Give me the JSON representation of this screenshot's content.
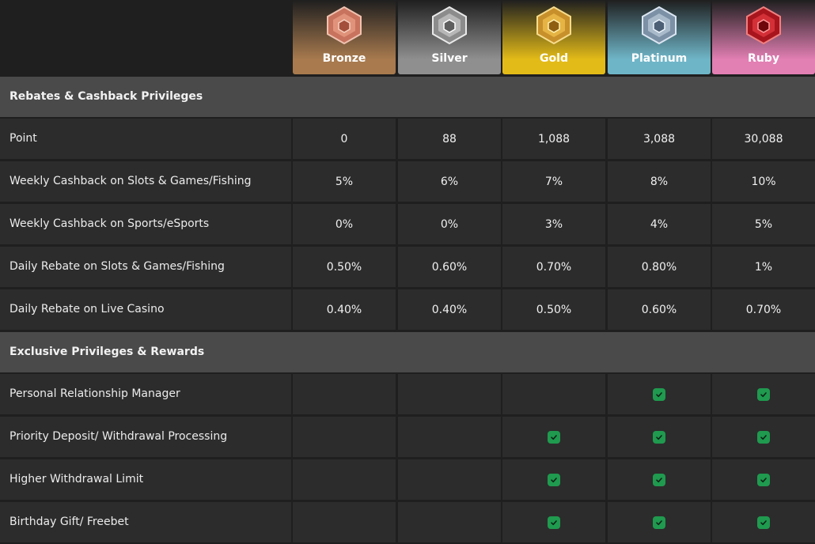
{
  "colors": {
    "background": "#1f1f1f",
    "cell": "#2c2c2c",
    "section": "#4a4a4a",
    "check": "#1f9a4f"
  },
  "tiers": [
    {
      "name": "Bronze",
      "color": "#a87a4e",
      "badge": "bronze-hexagon-icon"
    },
    {
      "name": "Silver",
      "color": "#8f8f8f",
      "badge": "silver-hexagon-icon"
    },
    {
      "name": "Gold",
      "color": "#e3bb18",
      "badge": "gold-hexagon-icon"
    },
    {
      "name": "Platinum",
      "color": "#6fb5c8",
      "badge": "platinum-hexagon-icon"
    },
    {
      "name": "Ruby",
      "color": "#e27fb3",
      "badge": "ruby-hexagon-icon"
    }
  ],
  "sections": [
    {
      "title": "Rebates & Cashback Privileges",
      "rows": [
        {
          "label": "Point",
          "values": [
            "0",
            "88",
            "1,088",
            "3,088",
            "30,088"
          ]
        },
        {
          "label": "Weekly Cashback on Slots & Games/Fishing",
          "values": [
            "5%",
            "6%",
            "7%",
            "8%",
            "10%"
          ]
        },
        {
          "label": "Weekly Cashback on Sports/eSports",
          "values": [
            "0%",
            "0%",
            "3%",
            "4%",
            "5%"
          ]
        },
        {
          "label": "Daily Rebate on Slots & Games/Fishing",
          "values": [
            "0.50%",
            "0.60%",
            "0.70%",
            "0.80%",
            "1%"
          ]
        },
        {
          "label": "Daily Rebate on Live Casino",
          "values": [
            "0.40%",
            "0.40%",
            "0.50%",
            "0.60%",
            "0.70%"
          ]
        }
      ]
    },
    {
      "title": "Exclusive Privileges & Rewards",
      "rows": [
        {
          "label": "Personal Relationship Manager",
          "checks": [
            false,
            false,
            false,
            true,
            true
          ]
        },
        {
          "label": "Priority Deposit/ Withdrawal Processing",
          "checks": [
            false,
            false,
            true,
            true,
            true
          ]
        },
        {
          "label": "Higher Withdrawal Limit",
          "checks": [
            false,
            false,
            true,
            true,
            true
          ]
        },
        {
          "label": "Birthday Gift/ Freebet",
          "checks": [
            false,
            false,
            true,
            true,
            true
          ]
        }
      ]
    }
  ]
}
